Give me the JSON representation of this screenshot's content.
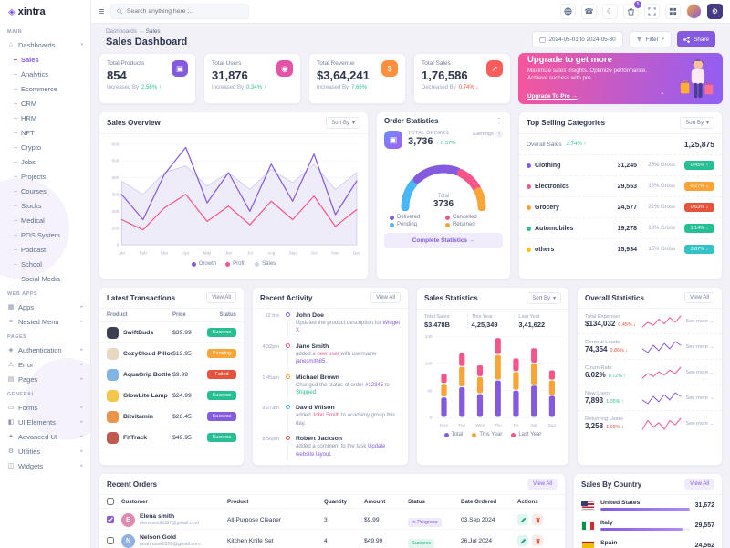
{
  "app": {
    "logo_text": "xintra"
  },
  "ui": {
    "logo_mark": "◈",
    "hamburger": "≡",
    "phone": "☎",
    "moon": "☾",
    "kebab": "⋮",
    "chevron_down": "▾",
    "sparkle": "✦",
    "gear": "⚙",
    "arrow_right": "→"
  },
  "topbar": {
    "search_placeholder": "Search anything here ...",
    "cart_badge": "5"
  },
  "pagehead": {
    "crumb1": "Dashboards",
    "sep": "→",
    "crumb2": "Sales",
    "title": "Sales Dashboard",
    "date_range": "2024-05-01 to 2024-05-30",
    "filter": "Filter",
    "share": "Share"
  },
  "sidebar": {
    "items": [
      {
        "cls": "sec",
        "label": "MAIN",
        "icon": "",
        "chev": "",
        "inter": "false"
      },
      {
        "cls": "item",
        "label": "Dashboards",
        "icon": "⌂",
        "chev": "▾",
        "inter": "true",
        "icon_name": "home-icon"
      },
      {
        "cls": "sub active",
        "label": "Sales",
        "icon": "",
        "chev": "",
        "inter": "true"
      },
      {
        "cls": "sub",
        "label": "Analytics",
        "icon": "",
        "chev": "",
        "inter": "true"
      },
      {
        "cls": "sub",
        "label": "Ecommerce",
        "icon": "",
        "chev": "",
        "inter": "true"
      },
      {
        "cls": "sub",
        "label": "CRM",
        "icon": "",
        "chev": "",
        "inter": "true"
      },
      {
        "cls": "sub",
        "label": "HRM",
        "icon": "",
        "chev": "",
        "inter": "true"
      },
      {
        "cls": "sub",
        "label": "NFT",
        "icon": "",
        "chev": "",
        "inter": "true"
      },
      {
        "cls": "sub",
        "label": "Crypto",
        "icon": "",
        "chev": "",
        "inter": "true"
      },
      {
        "cls": "sub",
        "label": "Jobs",
        "icon": "",
        "chev": "",
        "inter": "true"
      },
      {
        "cls": "sub",
        "label": "Projects",
        "icon": "",
        "chev": "",
        "inter": "true"
      },
      {
        "cls": "sub",
        "label": "Courses",
        "icon": "",
        "chev": "",
        "inter": "true"
      },
      {
        "cls": "sub",
        "label": "Stocks",
        "icon": "",
        "chev": "",
        "inter": "true"
      },
      {
        "cls": "sub",
        "label": "Medical",
        "icon": "",
        "chev": "",
        "inter": "true"
      },
      {
        "cls": "sub",
        "label": "POS System",
        "icon": "",
        "chev": "",
        "inter": "true"
      },
      {
        "cls": "sub",
        "label": "Podcast",
        "icon": "",
        "chev": "",
        "inter": "true"
      },
      {
        "cls": "sub",
        "label": "School",
        "icon": "",
        "chev": "",
        "inter": "true"
      },
      {
        "cls": "sub",
        "label": "Social Media",
        "icon": "",
        "chev": "",
        "inter": "true"
      },
      {
        "cls": "sec",
        "label": "WEB APPS",
        "icon": "",
        "chev": "",
        "inter": "false"
      },
      {
        "cls": "item",
        "label": "Apps",
        "icon": "▦",
        "chev": "▸",
        "inter": "true",
        "icon_name": "apps-icon"
      },
      {
        "cls": "item",
        "label": "Nested Menu",
        "icon": "≡",
        "chev": "▸",
        "inter": "true",
        "icon_name": "menu-icon"
      },
      {
        "cls": "sec",
        "label": "PAGES",
        "icon": "",
        "chev": "",
        "inter": "false"
      },
      {
        "cls": "item",
        "label": "Authentication",
        "icon": "◈",
        "chev": "▸",
        "inter": "true",
        "icon_name": "lock-icon"
      },
      {
        "cls": "item",
        "label": "Error",
        "icon": "⚠",
        "chev": "▸",
        "inter": "true",
        "icon_name": "warning-icon"
      },
      {
        "cls": "item",
        "label": "Pages",
        "icon": "▤",
        "chev": "▸",
        "inter": "true",
        "icon_name": "pages-icon"
      },
      {
        "cls": "sec",
        "label": "GENERAL",
        "icon": "",
        "chev": "",
        "inter": "false"
      },
      {
        "cls": "item",
        "label": "Forms",
        "icon": "▭",
        "chev": "▸",
        "inter": "true",
        "icon_name": "forms-icon"
      },
      {
        "cls": "item",
        "label": "UI Elements",
        "icon": "◧",
        "chev": "▸",
        "inter": "true",
        "icon_name": "ui-icon"
      },
      {
        "cls": "item",
        "label": "Advanced UI",
        "icon": "✦",
        "chev": "▸",
        "inter": "true",
        "icon_name": "star-icon"
      },
      {
        "cls": "item",
        "label": "Utilities",
        "icon": "⚙",
        "chev": "▸",
        "inter": "true",
        "icon_name": "utilities-icon"
      },
      {
        "cls": "item",
        "label": "Widgets",
        "icon": "◫",
        "chev": "▸",
        "inter": "true",
        "icon_name": "widgets-icon"
      }
    ]
  },
  "stats": {
    "cards": [
      {
        "label": "Total Products",
        "value": "854",
        "prefix": "Increased By",
        "change": "2.56% ↑",
        "tone": "up",
        "color": "#845adf",
        "icon": "▣",
        "icon_name": "products-icon"
      },
      {
        "label": "Total Users",
        "value": "31,876",
        "prefix": "Increased By",
        "change": "0.34% ↑",
        "tone": "up",
        "color": "#e354a6",
        "icon": "◉",
        "icon_name": "users-icon"
      },
      {
        "label": "Total Revenue",
        "value": "$3,64,241",
        "prefix": "Increased By",
        "change": "7.66% ↑",
        "tone": "up",
        "color": "#ff8e3d",
        "icon": "$",
        "icon_name": "revenue-icon"
      },
      {
        "label": "Total Sales",
        "value": "1,76,586",
        "prefix": "Decreased By",
        "change": "0.74% ↓",
        "tone": "down",
        "color": "#fb5c5c",
        "icon": "↗",
        "icon_name": "sales-icon"
      }
    ]
  },
  "upgrade": {
    "title": "Upgrade to get more",
    "desc": "Maximize sales insights. Optimize performance. Achieve success with pro.",
    "cta": "Upgrade To Pro →"
  },
  "sales_overview": {
    "title": "Sales Overview",
    "sort": "Sort By",
    "legend": [
      {
        "label": "Growth",
        "color": "#845adf"
      },
      {
        "label": "Profit",
        "color": "#f5568a"
      },
      {
        "label": "Sales",
        "color": "#d4cdf0"
      }
    ],
    "chart": {
      "type": "line",
      "x": [
        "Jan",
        "Feb",
        "Mar",
        "Apr",
        "May",
        "Jun",
        "Jul",
        "Aug",
        "Sep",
        "Oct",
        "Nov",
        "Dec"
      ],
      "ymax": 600,
      "yticks": [
        0,
        100,
        200,
        300,
        400,
        500,
        600
      ],
      "series": [
        {
          "name": "Sales",
          "kind": "area",
          "color": "#cfc7ee",
          "fill": "#efecfa",
          "values": [
            380,
            300,
            430,
            470,
            350,
            430,
            330,
            450,
            370,
            480,
            330,
            430
          ]
        },
        {
          "name": "Growth",
          "kind": "line",
          "color": "#845adf",
          "values": [
            300,
            150,
            420,
            580,
            250,
            430,
            200,
            480,
            260,
            540,
            180,
            380
          ]
        },
        {
          "name": "Profit",
          "kind": "line",
          "color": "#f5568a",
          "values": [
            150,
            90,
            220,
            300,
            140,
            230,
            120,
            260,
            150,
            290,
            110,
            210
          ]
        }
      ]
    }
  },
  "order_stats": {
    "title": "Order Statistics",
    "icon": "▣",
    "total_label": "TOTAL ORDERS",
    "total": "3,736",
    "change": "↑ 0.57%",
    "earnings": "Earnings",
    "help": "?",
    "center_label": "Total",
    "center_value": "3736",
    "legend": [
      {
        "label": "Delivered",
        "color": "#845adf"
      },
      {
        "label": "Cancelled",
        "color": "#f5568a"
      },
      {
        "label": "Pending",
        "color": "#49b6f5"
      },
      {
        "label": "Returned",
        "color": "#f8a437"
      }
    ],
    "segments": [
      {
        "label": "Pending",
        "value": 25,
        "color": "#49b6f5"
      },
      {
        "label": "Delivered",
        "value": 40,
        "color": "#845adf"
      },
      {
        "label": "Cancelled",
        "value": 20,
        "color": "#f5568a"
      },
      {
        "label": "Returned",
        "value": 15,
        "color": "#f8a437"
      }
    ],
    "cta": "Complete Statistics →"
  },
  "top_categories": {
    "title": "Top Selling Categories",
    "sort": "Sort By",
    "overall_label": "Overall Sales",
    "overall_change": "2.74% ↑",
    "overall_value": "1,25,875",
    "rows": [
      {
        "name": "Clothing",
        "value": "31,245",
        "gross": "25% Gross",
        "badge": "0.45% ↑",
        "tone": "success",
        "dot": "#845adf"
      },
      {
        "name": "Electronics",
        "value": "29,553",
        "gross": "16% Gross",
        "badge": "0.27% ↓",
        "tone": "warning",
        "dot": "#f5568a"
      },
      {
        "name": "Grocery",
        "value": "24,577",
        "gross": "22% Gross",
        "badge": "0.63% ↓",
        "tone": "danger",
        "dot": "#f8a437"
      },
      {
        "name": "Automobiles",
        "value": "19,278",
        "gross": "18% Gross",
        "badge": "1.14% ↑",
        "tone": "success",
        "dot": "#26bf94"
      },
      {
        "name": "others",
        "value": "15,934",
        "gross": "15% Gross",
        "badge": "3.87% ↑",
        "tone": "info",
        "dot": "#ffc107"
      }
    ]
  },
  "transactions": {
    "title": "Latest Transactions",
    "view_all": "View All",
    "headers": [
      "Product",
      "Price",
      "Status"
    ],
    "rows": [
      {
        "name": "SwiftBuds",
        "price": "$39.99",
        "status": "Success",
        "tone": "success",
        "thumb": "#3b3f51"
      },
      {
        "name": "CozyCloud Pillow",
        "price": "$19.95",
        "status": "Pending",
        "tone": "warning",
        "thumb": "#e8d7c3"
      },
      {
        "name": "AquaGrip Bottle",
        "price": "$9.99",
        "status": "Failed",
        "tone": "danger",
        "thumb": "#7fb5e0"
      },
      {
        "name": "GlowLite Lamp",
        "price": "$24.99",
        "status": "Success",
        "tone": "success",
        "thumb": "#f3c64e"
      },
      {
        "name": "Bitvitamin",
        "price": "$26.45",
        "status": "Success",
        "tone": "primary",
        "thumb": "#e8944a"
      },
      {
        "name": "FitTrack",
        "price": "$49.95",
        "status": "Success",
        "tone": "success",
        "thumb": "#c05a4e"
      }
    ]
  },
  "activity": {
    "title": "Recent Activity",
    "view_all": "View All",
    "items": [
      {
        "time": "12 hrs",
        "name": "John Doe",
        "before": "Updated the product description for ",
        "l1": "Widget X.",
        "mid": "",
        "l2": "",
        "dot": "#845adf",
        "c1": "#845adf",
        "c2": "#f5568a"
      },
      {
        "time": "4:32pm",
        "name": "Jane Smith",
        "before": "added a ",
        "l1": "new user",
        "mid": " with username ",
        "l2": "janesmith85.",
        "dot": "#f5568a",
        "c1": "#f5568a",
        "c2": "#845adf"
      },
      {
        "time": "1:45am",
        "name": "Michael Brown",
        "before": "Changed the status of order ",
        "l1": "#12345",
        "mid": " to ",
        "l2": "Shipped.",
        "dot": "#f8a437",
        "c1": "#845adf",
        "c2": "#26bf94"
      },
      {
        "time": "9:27am",
        "name": "David Wilson",
        "before": "added ",
        "l1": "John Smith",
        "mid": " to academy group this day.",
        "l2": "",
        "dot": "#49b6f5",
        "c1": "#f5568a",
        "c2": "#845adf"
      },
      {
        "time": "8:56pm",
        "name": "Robert Jackson",
        "before": "added a comment to the task ",
        "l1": "Update website layout.",
        "mid": "",
        "l2": "",
        "dot": "#e6533c",
        "c1": "#845adf",
        "c2": "#845adf"
      }
    ]
  },
  "sales_stats": {
    "title": "Sales Statistics",
    "sort": "Sort By",
    "summary": [
      {
        "label": "Total Sales",
        "value": "$3.478B"
      },
      {
        "label": "This Year",
        "value": "4,25,349"
      },
      {
        "label": "Last Year",
        "value": "3,41,622"
      }
    ],
    "legend": [
      {
        "label": "Total",
        "color": "#845adf"
      },
      {
        "label": "This Year",
        "color": "#f8a437"
      },
      {
        "label": "Last Year",
        "color": "#f5568a"
      }
    ],
    "chart": {
      "type": "bar",
      "days": [
        "Mon",
        "Tue",
        "Wed",
        "Thu",
        "Fri",
        "Sat",
        "Sun"
      ],
      "ymax": 240,
      "yticks": [
        0,
        80,
        160,
        240
      ],
      "series": [
        {
          "name": "Total",
          "color": "#845adf",
          "values": [
            60,
            90,
            70,
            110,
            80,
            95,
            65
          ]
        },
        {
          "name": "This Year",
          "color": "#f8a437",
          "values": [
            40,
            60,
            50,
            75,
            55,
            65,
            45
          ]
        },
        {
          "name": "Last Year",
          "color": "#f5568a",
          "values": [
            30,
            40,
            35,
            50,
            40,
            45,
            30
          ]
        }
      ]
    }
  },
  "overall_stats": {
    "title": "Overall Statistics",
    "view_all": "View All",
    "rows": [
      {
        "label": "Total Expenses",
        "value": "$134,032",
        "change": "0.45% ↓",
        "tone": "down",
        "spark": "4,7,5,9,6,10,7,11",
        "color": "#f5568a",
        "see": "See more →"
      },
      {
        "label": "General Leads",
        "value": "74,354",
        "change": "0.86% ↓",
        "tone": "down",
        "spark": "6,4,8,5,9,6,10,8",
        "color": "#845adf",
        "see": "See more →"
      },
      {
        "label": "Churn Rate",
        "value": "6.02%",
        "change": "0.72% ↑",
        "tone": "up",
        "spark": "5,8,6,9,7,10,8,12",
        "color": "#f5568a",
        "see": "See more →"
      },
      {
        "label": "New Users",
        "value": "7,893",
        "change": "1.05% ↑",
        "tone": "up",
        "spark": "7,5,9,6,10,7,11,9",
        "color": "#845adf",
        "see": "See more →"
      },
      {
        "label": "Returning Users",
        "value": "3,258",
        "change": "1.69% ↓",
        "tone": "down",
        "spark": "5,9,6,8,5,9,7,10",
        "color": "#f5568a",
        "see": "See more →"
      }
    ]
  },
  "orders": {
    "title": "Recent Orders",
    "view_all": "View All",
    "headers": [
      "Customer",
      "Product",
      "Quantity",
      "Amount",
      "Status",
      "Date Ordered",
      "Actions"
    ],
    "rows": [
      {
        "initial": "E",
        "avatar": "#e08bb0",
        "name": "Elena smith",
        "email": "elenasmith087@gmail.com",
        "product": "All-Purpose Cleaner",
        "qty": "3",
        "amount": "$9.99",
        "status": "In Progress",
        "tone": "primary",
        "date": "03,Sep 2024",
        "checked": "checked"
      },
      {
        "initial": "N",
        "avatar": "#8fb0e0",
        "name": "Nelson Gold",
        "email": "noahrussell556@gmail.com",
        "product": "Kitchen Knife Set",
        "qty": "4",
        "amount": "$49.99",
        "status": "Success",
        "tone": "success",
        "date": "26,Jul 2024"
      }
    ]
  },
  "countries": {
    "title": "Sales By Country",
    "view_all": "View All",
    "rows": [
      {
        "name": "United States",
        "value": "31,672",
        "pct": "100%",
        "flag": "flag-us"
      },
      {
        "name": "Italy",
        "value": "29,557",
        "pct": "92%",
        "flag": "flag-it"
      },
      {
        "name": "Spain",
        "value": "24,562",
        "pct": "77%",
        "flag": "flag-es"
      }
    ]
  }
}
